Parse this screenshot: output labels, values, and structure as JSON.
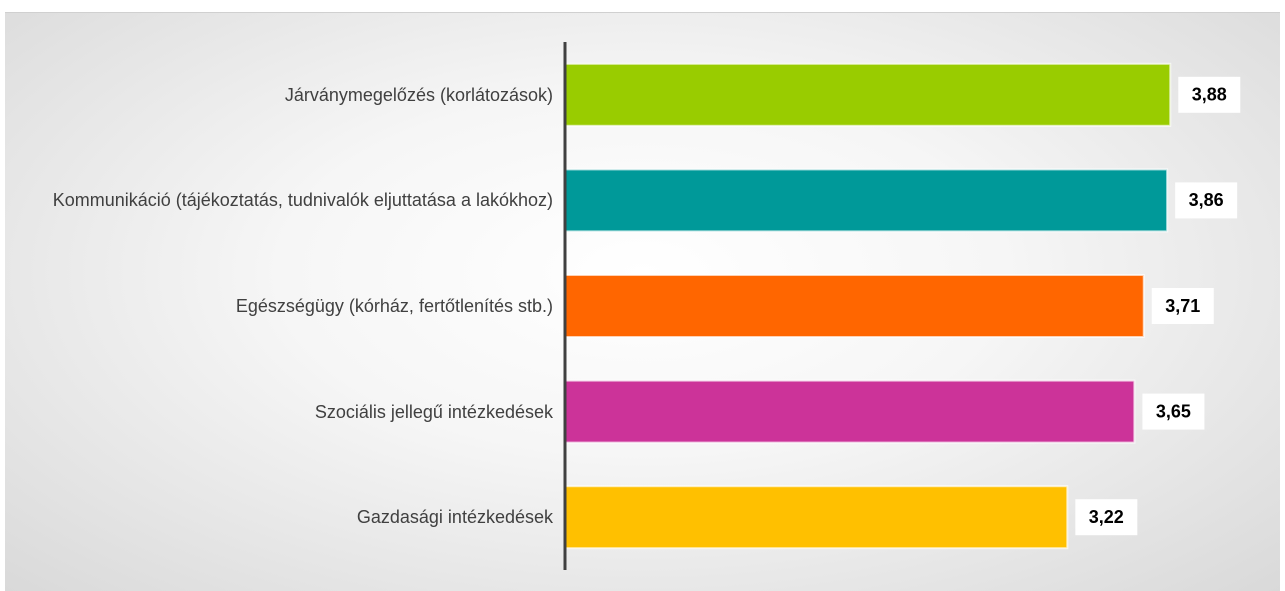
{
  "chart_data": {
    "type": "barh",
    "categories": [
      "Járványmegelőzés (korlátozások)",
      "Kommunikáció (tájékoztatás, tudnivalók eljuttatása a lakókhoz)",
      "Egészségügy (kórház, fertőtlenítés stb.)",
      "Szociális jellegű intézkedések",
      "Gazdasági intézkedések"
    ],
    "values": [
      3.88,
      3.86,
      3.71,
      3.65,
      3.22
    ],
    "value_labels": [
      "3,88",
      "3,86",
      "3,71",
      "3,65",
      "3,22"
    ],
    "colors": [
      "#99cc00",
      "#009999",
      "#ff6600",
      "#cc3399",
      "#ffc000"
    ],
    "xlim": [
      0,
      4.5
    ]
  }
}
